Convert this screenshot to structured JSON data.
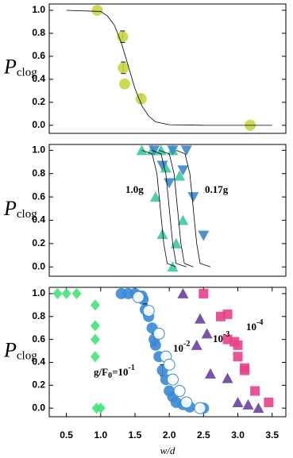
{
  "chart_data": [
    {
      "type": "scatter",
      "ylabel": "P",
      "ylabel_sub": "clog",
      "xlim": [
        0.25,
        3.7
      ],
      "ylim": [
        -0.07,
        1.055
      ],
      "yticks": [
        {
          "value": 0,
          "label": "0.0"
        },
        0.2,
        0.4,
        0.6,
        0.8,
        {
          "value": 1,
          "label": "1.0"
        }
      ],
      "series": [
        {
          "color": "#c8d642",
          "marker": "circle",
          "x": [
            0.95,
            1.32,
            1.33,
            1.35,
            1.59,
            3.18
          ],
          "values": [
            1.0,
            0.77,
            0.5,
            0.36,
            0.23,
            0.0
          ],
          "errors": [
            null,
            0.05,
            0.05,
            null,
            0.04,
            null
          ]
        },
        {
          "color": "#000000",
          "line": true,
          "x": [
            0.5,
            1.0,
            1.1,
            1.2,
            1.3,
            1.4,
            1.5,
            1.6,
            1.7,
            1.8,
            2.0,
            2.5,
            3.0,
            3.5
          ],
          "values": [
            1,
            0.99,
            0.95,
            0.87,
            0.72,
            0.52,
            0.32,
            0.17,
            0.08,
            0.03,
            0.005,
            0,
            0,
            0
          ]
        }
      ]
    },
    {
      "type": "scatter",
      "ylabel": "P",
      "ylabel_sub": "clog",
      "xlim": [
        0.25,
        3.7
      ],
      "ylim": [
        -0.08,
        1.05
      ],
      "yticks": [
        {
          "value": 0,
          "label": "0.0"
        },
        0.2,
        0.4,
        0.6,
        0.8,
        {
          "value": 1,
          "label": "1.0"
        }
      ],
      "annotations": [
        {
          "text": "1.0g"
        },
        {
          "text": "0.17g"
        }
      ],
      "series": [
        {
          "color": "#3ec9a0",
          "marker": "triangle-up",
          "x": [
            1.6,
            1.75,
            1.88,
            2.05,
            1.95,
            2.15,
            1.8,
            2.2,
            1.9,
            2.1,
            2.05
          ],
          "values": [
            1,
            1,
            1,
            1,
            0.85,
            0.78,
            0.6,
            0.4,
            0.28,
            0.2,
            0
          ]
        },
        {
          "color": "#3a87c8",
          "marker": "triangle-down",
          "x": [
            1.78,
            2.05,
            2.25,
            1.9,
            2.2,
            2.0,
            2.35,
            2.5
          ],
          "values": [
            1,
            1,
            1,
            0.87,
            0.83,
            0.72,
            0.6,
            0.27
          ]
        },
        {
          "color": "#000000",
          "line": true,
          "x": [
            1.6,
            1.75,
            1.82,
            1.87,
            1.92,
            1.97,
            2.1
          ],
          "values": [
            1,
            0.97,
            0.8,
            0.5,
            0.2,
            0.03,
            0
          ]
        },
        {
          "color": "#000000",
          "line": true,
          "x": [
            1.75,
            1.88,
            1.95,
            2.0,
            2.05,
            2.1,
            2.25
          ],
          "values": [
            1,
            0.97,
            0.8,
            0.5,
            0.2,
            0.03,
            0
          ]
        },
        {
          "color": "#000000",
          "line": true,
          "x": [
            1.85,
            2.0,
            2.07,
            2.12,
            2.17,
            2.22,
            2.35
          ],
          "values": [
            1,
            0.97,
            0.8,
            0.5,
            0.2,
            0.03,
            0
          ]
        },
        {
          "color": "#000000",
          "line": true,
          "x": [
            2.1,
            2.23,
            2.3,
            2.35,
            2.4,
            2.45,
            2.6
          ],
          "values": [
            1,
            0.97,
            0.8,
            0.5,
            0.2,
            0.03,
            0
          ]
        }
      ]
    },
    {
      "type": "scatter",
      "ylabel": "P",
      "ylabel_sub": "clog",
      "xlabel": "w/d",
      "xlim": [
        0.25,
        3.7
      ],
      "ylim": [
        -0.075,
        1.055
      ],
      "xticks": [
        0.5,
        {
          "value": 1,
          "label": "1.0"
        },
        1.5,
        {
          "value": 2,
          "label": "2.0"
        },
        2.5,
        {
          "value": 3,
          "label": "3.0"
        },
        3.5
      ],
      "yticks": [
        {
          "value": 0,
          "label": "0.0"
        },
        0.2,
        0.4,
        0.6,
        0.8,
        {
          "value": 1,
          "label": "1.0"
        }
      ],
      "annotations": [
        {
          "text": "g/F",
          "sub": "0",
          "text2": "=10",
          "sup": "-1"
        },
        {
          "text": "10",
          "sup": "-2"
        },
        {
          "text": "10",
          "sup": "-3"
        },
        {
          "text": "10",
          "sup": "-4"
        }
      ],
      "series": [
        {
          "color": "#44e27a",
          "marker": "diamond",
          "x": [
            0.37,
            0.5,
            0.65,
            0.92,
            0.92,
            0.92,
            0.92,
            0.94,
            1.0
          ],
          "values": [
            1,
            1,
            1,
            0.9,
            0.72,
            0.6,
            0.45,
            0,
            0
          ]
        },
        {
          "color": "#3a8ad6",
          "marker": "circle",
          "x": [
            1.3,
            1.4,
            1.5,
            1.6,
            1.62,
            1.65,
            1.7,
            1.75,
            1.78,
            1.8,
            1.85,
            1.9,
            1.95,
            2.0,
            2.05,
            2.1,
            2.2,
            2.3,
            2.5
          ],
          "values": [
            1,
            1,
            1,
            0.98,
            0.95,
            0.86,
            0.8,
            0.7,
            0.6,
            0.55,
            0.45,
            0.33,
            0.25,
            0.15,
            0.1,
            0.05,
            0.03,
            0.01,
            0
          ],
          "errors": [
            null,
            null,
            null,
            null,
            null,
            0.05,
            null,
            null,
            0.05,
            null,
            null,
            0.05,
            null,
            null,
            null,
            null,
            null,
            null,
            null
          ]
        },
        {
          "color": "#3a8ad6",
          "marker": "circle",
          "open": true,
          "x": [
            1.55,
            1.7,
            1.85,
            1.95,
            2.0,
            2.05,
            2.15,
            2.25,
            2.45
          ],
          "values": [
            0.97,
            0.85,
            0.65,
            0.45,
            0.38,
            0.25,
            0.15,
            0.05,
            0
          ]
        },
        {
          "color": "#6a3fa0",
          "marker": "triangle-up",
          "x": [
            2.2,
            2.45,
            2.55,
            2.4,
            2.6,
            2.85,
            3.0,
            3.15,
            3.3
          ],
          "values": [
            1,
            0.78,
            0.65,
            0.55,
            0.3,
            0.26,
            0.05,
            0.03,
            0
          ]
        },
        {
          "color": "#e8418a",
          "marker": "square",
          "x": [
            2.5,
            2.75,
            2.85,
            2.85,
            2.95,
            3.0,
            3.0,
            3.1,
            3.1,
            3.25,
            3.45
          ],
          "values": [
            1,
            0.8,
            0.82,
            0.6,
            0.58,
            0.55,
            0.45,
            0.35,
            0.33,
            0.15,
            0.05
          ]
        }
      ]
    }
  ]
}
